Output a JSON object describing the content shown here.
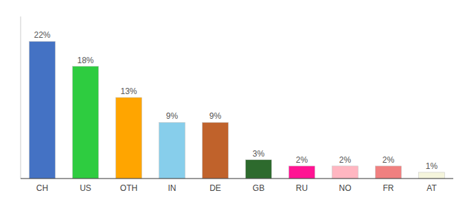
{
  "chart_data": {
    "type": "bar",
    "categories": [
      "CH",
      "US",
      "OTH",
      "IN",
      "DE",
      "GB",
      "RU",
      "NO",
      "FR",
      "AT"
    ],
    "values": [
      22,
      18,
      13,
      9,
      9,
      3,
      2,
      2,
      2,
      1
    ],
    "value_labels": [
      "22%",
      "18%",
      "13%",
      "9%",
      "9%",
      "3%",
      "2%",
      "2%",
      "2%",
      "1%"
    ],
    "colors": [
      "#4472C4",
      "#2ECC40",
      "#FFA500",
      "#87CEEB",
      "#C0622B",
      "#2D6A2D",
      "#FF1493",
      "#FFB6C1",
      "#F08080",
      "#F5F5DC"
    ],
    "ylim": [
      0,
      26
    ],
    "data_labels": true,
    "tick_labels": "x"
  }
}
